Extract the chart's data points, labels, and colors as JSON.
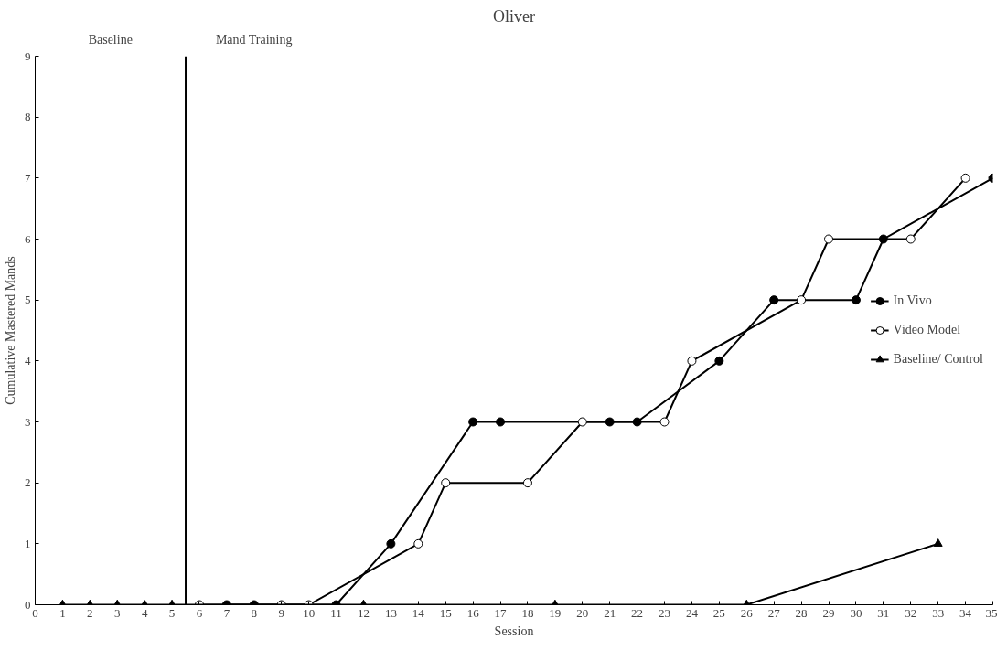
{
  "chart_data": {
    "type": "line",
    "title": "Oliver",
    "xlabel": "Session",
    "ylabel": "Cumulative Mastered Mands",
    "xlim": [
      0,
      35
    ],
    "xticks": [
      0,
      1,
      2,
      3,
      4,
      5,
      6,
      7,
      8,
      9,
      10,
      11,
      12,
      13,
      14,
      15,
      16,
      17,
      18,
      19,
      20,
      21,
      22,
      23,
      24,
      25,
      26,
      27,
      28,
      29,
      30,
      31,
      32,
      33,
      34,
      35
    ],
    "ylim": [
      0,
      9
    ],
    "yticks": [
      0,
      1,
      2,
      3,
      4,
      5,
      6,
      7,
      8,
      9
    ],
    "grid": false,
    "legend": "right",
    "line_style": "solid",
    "ref_lines": [
      {
        "axis": "x",
        "value": 5.5,
        "color": "#000000"
      }
    ],
    "annotations": [
      "Baseline",
      "Mand Training"
    ],
    "series": [
      {
        "name": "In Vivo",
        "color": "#000000",
        "marker": "circle",
        "x": [
          7,
          8,
          11,
          13,
          16,
          17,
          21,
          22,
          25,
          27,
          30,
          31,
          35
        ],
        "values": [
          0,
          0,
          0,
          1,
          3,
          3,
          3,
          3,
          4,
          5,
          5,
          6,
          7
        ]
      },
      {
        "name": "Video Model",
        "color": "#000000",
        "marker": "circle_open",
        "x": [
          6,
          9,
          10,
          14,
          15,
          18,
          20,
          23,
          24,
          28,
          29,
          32,
          34
        ],
        "values": [
          0,
          0,
          0,
          1,
          2,
          2,
          3,
          3,
          4,
          5,
          6,
          6,
          7
        ]
      },
      {
        "name": "Baseline/ Control",
        "color": "#000000",
        "marker": "triangle",
        "x": [
          1,
          2,
          3,
          4,
          5,
          12,
          19,
          26,
          33
        ],
        "values": [
          0,
          0,
          0,
          0,
          0,
          0,
          0,
          0,
          1
        ]
      }
    ]
  }
}
